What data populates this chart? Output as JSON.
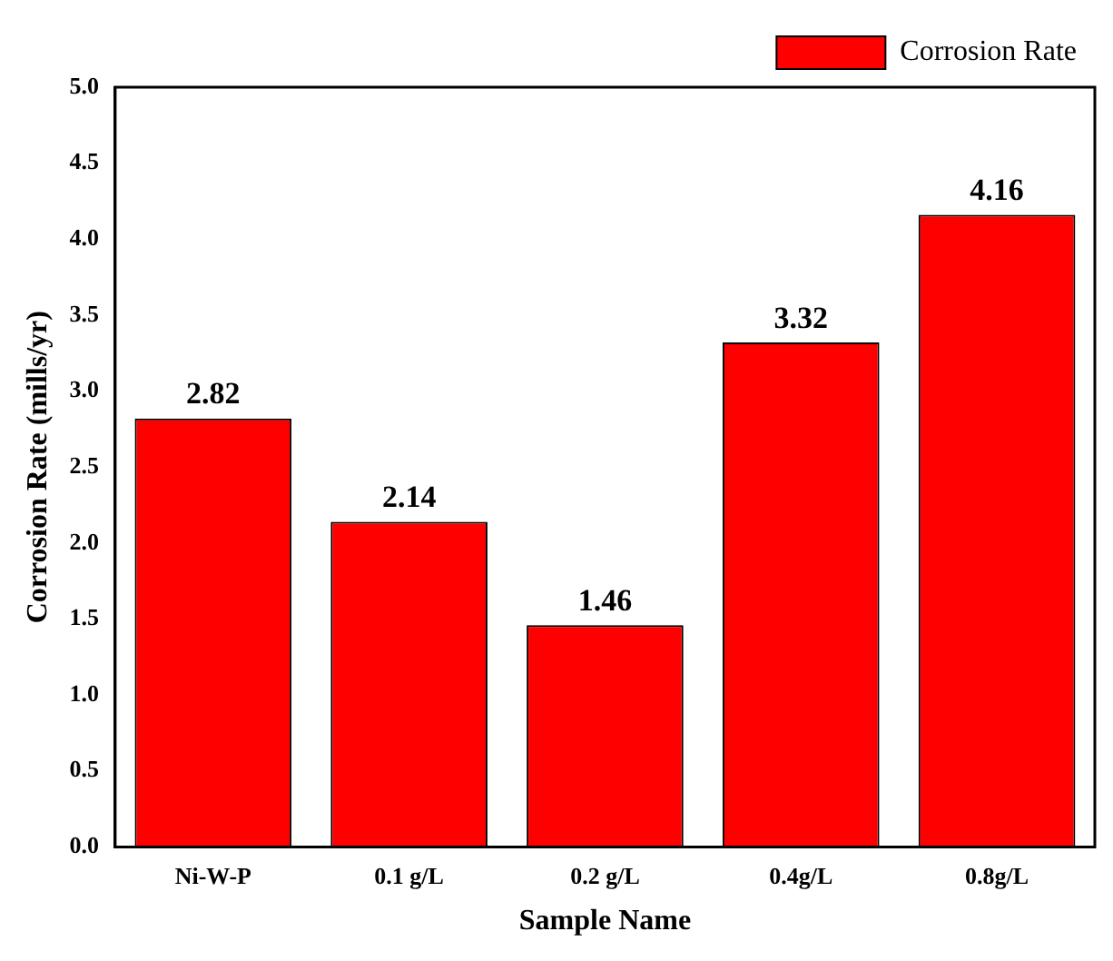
{
  "chart_data": {
    "type": "bar",
    "xlabel": "Sample Name",
    "ylabel": "Corrosion Rate (mills/yr)",
    "categories": [
      "Ni-W-P",
      "0.1 g/L",
      "0.2 g/L",
      "0.4g/L",
      "0.8g/L"
    ],
    "series": [
      {
        "name": "Corrosion Rate",
        "color": "#ff0000",
        "values": [
          2.82,
          2.14,
          1.46,
          3.32,
          4.16
        ]
      }
    ],
    "ylim": [
      0,
      5
    ],
    "yticks": [
      {
        "value": 0,
        "label": "0.0"
      },
      0.5,
      {
        "value": 1,
        "label": "1.0"
      },
      1.5,
      {
        "value": 2,
        "label": "2.0"
      },
      2.5,
      {
        "value": 3,
        "label": "3.0"
      },
      3.5,
      {
        "value": 4,
        "label": "4.0"
      },
      4.5,
      {
        "value": 5,
        "label": "5.0"
      }
    ],
    "data_labels": true,
    "legend": "top right",
    "grid": false
  }
}
